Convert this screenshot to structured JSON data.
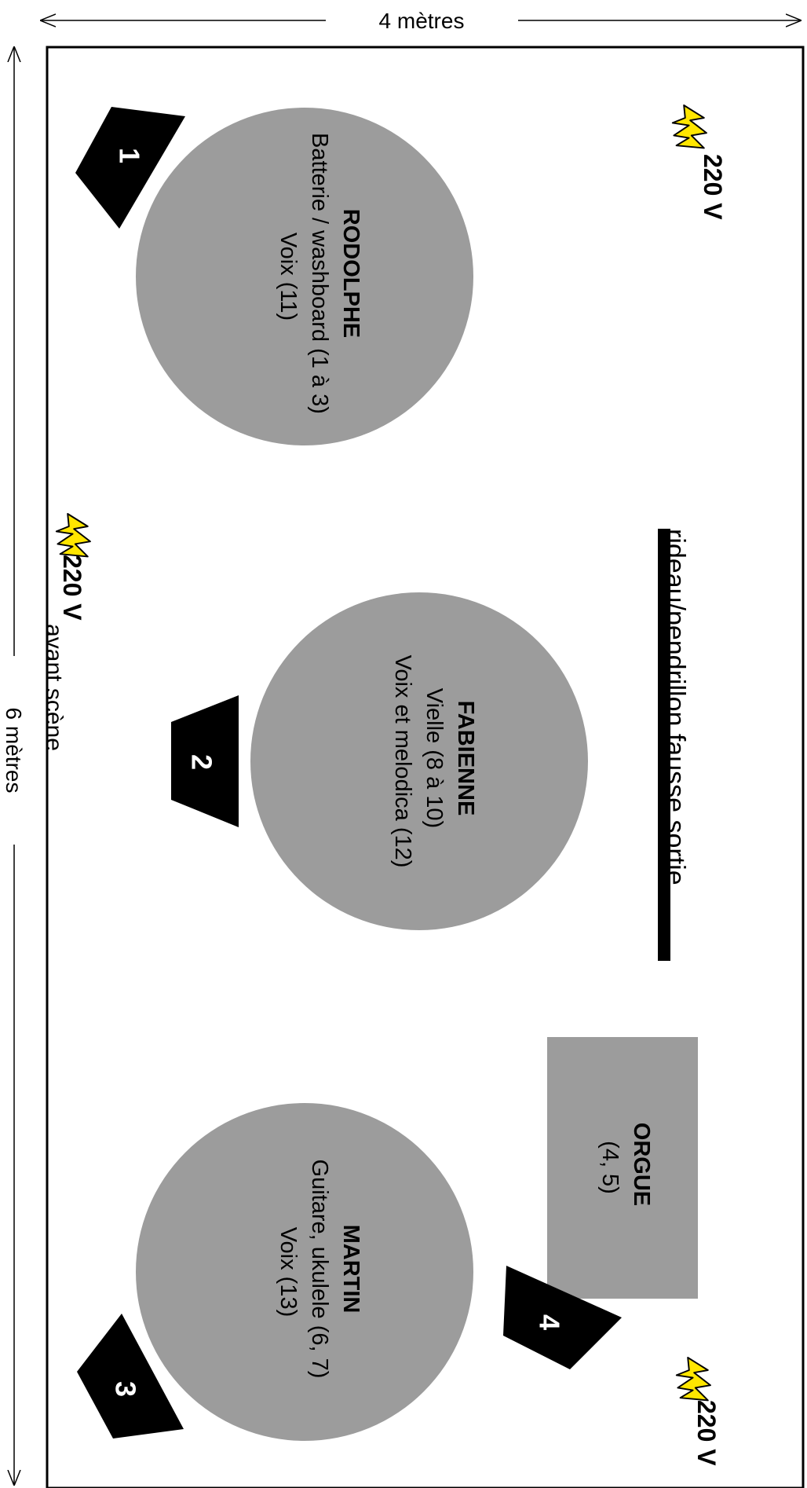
{
  "dimensions": {
    "width_label": "4 mètres",
    "height_label": "6 mètres"
  },
  "labels": {
    "front_stage": "avant scène",
    "curtain": "rideau/pendrillon fausse sortie"
  },
  "power": {
    "label": "220 V",
    "bolt_color": "#ffe600"
  },
  "musicians": {
    "rodolphe": {
      "name": "RODOLPHE",
      "line1": "Batterie / washboard (1 à 3)",
      "line2": "Voix (11)"
    },
    "fabienne": {
      "name": "FABIENNE",
      "line1": "Vielle (8 à 10)",
      "line2": "Voix et melodica (12)"
    },
    "martin": {
      "name": "MARTIN",
      "line1": "Guitare, ukulele (6, 7)",
      "line2": "Voix (13)"
    }
  },
  "organ": {
    "name": "ORGUE",
    "line1": "(4, 5)"
  },
  "monitors": {
    "m1": "1",
    "m2": "2",
    "m3": "3",
    "m4": "4"
  },
  "colors": {
    "position_fill": "#9c9c9c",
    "monitor_fill": "#000000",
    "curtain": "#000000"
  }
}
